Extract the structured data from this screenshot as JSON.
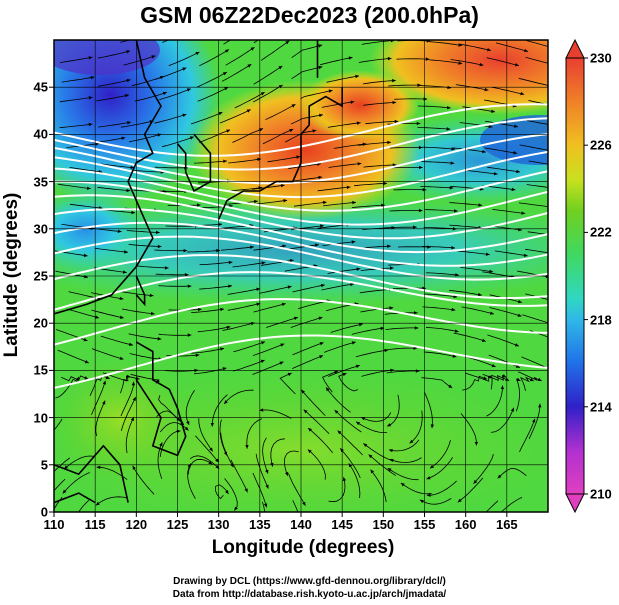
{
  "title": "GSM 06Z22Dec2023 (200.0hPa)",
  "x_axis": {
    "label": "Longitude (degrees)",
    "ticks": [
      "110",
      "115",
      "120",
      "125",
      "130",
      "135",
      "140",
      "145",
      "150",
      "155",
      "160",
      "165"
    ]
  },
  "y_axis": {
    "label": "Latitude  (degrees)",
    "ticks": [
      "0",
      "5",
      "10",
      "15",
      "20",
      "25",
      "30",
      "35",
      "40",
      "45"
    ]
  },
  "colorbar": {
    "ticks": [
      "210",
      "214",
      "218",
      "222",
      "226",
      "230"
    ],
    "min": 210,
    "max": 230,
    "colors": [
      "#e040c0",
      "#b030d0",
      "#3020c8",
      "#2070e8",
      "#30c8e0",
      "#30d8a8",
      "#50d840",
      "#70d020",
      "#c8e020",
      "#f0c020",
      "#f08028",
      "#e84030"
    ]
  },
  "credits": [
    "Drawing by DCL (https://www.gfd-dennou.org/library/dcl/)",
    "Data from http://database.rish.kyoto-u.ac.jp/arch/jmadata/"
  ],
  "chart_data": {
    "type": "heatmap",
    "title": "GSM 06Z22Dec2023 (200.0hPa)",
    "xlabel": "Longitude (degrees)",
    "ylabel": "Latitude  (degrees)",
    "xlim": [
      110,
      170
    ],
    "ylim": [
      0,
      50
    ],
    "xticks": [
      110,
      115,
      120,
      125,
      130,
      135,
      140,
      145,
      150,
      155,
      160,
      165
    ],
    "yticks": [
      0,
      5,
      10,
      15,
      20,
      25,
      30,
      35,
      40,
      45
    ],
    "colorbar_range": [
      210,
      230
    ],
    "colorbar_ticks": [
      210,
      214,
      218,
      222,
      226,
      230
    ],
    "grid": true,
    "overlays": [
      "streamlines",
      "wind-speed-contours (white)",
      "coastlines"
    ],
    "approx_field": [
      {
        "region": "NW corner (110-120E, 45-50N)",
        "value": 212
      },
      {
        "region": "Japan area (135-150E, 37-45N)",
        "value": 227
      },
      {
        "region": "NE corner (155-170E, 45-50N)",
        "value": 228
      },
      {
        "region": "Jet band (25-38N)",
        "value": 219
      },
      {
        "region": "Tropics (0-15N)",
        "value": 222
      }
    ]
  }
}
